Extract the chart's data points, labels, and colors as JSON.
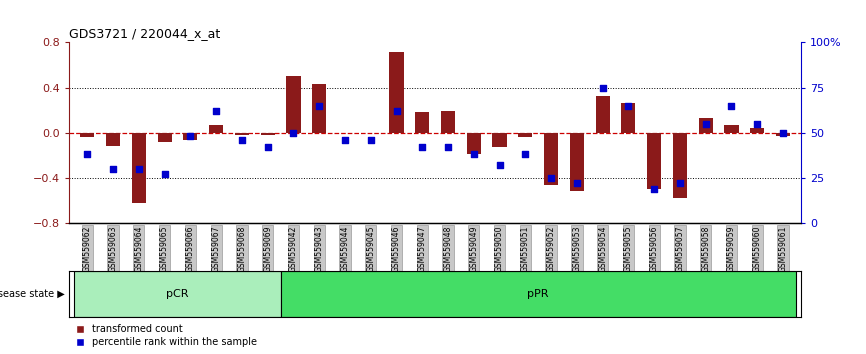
{
  "title": "GDS3721 / 220044_x_at",
  "samples": [
    "GSM559062",
    "GSM559063",
    "GSM559064",
    "GSM559065",
    "GSM559066",
    "GSM559067",
    "GSM559068",
    "GSM559069",
    "GSM559042",
    "GSM559043",
    "GSM559044",
    "GSM559045",
    "GSM559046",
    "GSM559047",
    "GSM559048",
    "GSM559049",
    "GSM559050",
    "GSM559051",
    "GSM559052",
    "GSM559053",
    "GSM559054",
    "GSM559055",
    "GSM559056",
    "GSM559057",
    "GSM559058",
    "GSM559059",
    "GSM559060",
    "GSM559061"
  ],
  "red_values": [
    -0.04,
    -0.12,
    -0.62,
    -0.08,
    -0.06,
    0.07,
    -0.02,
    -0.02,
    0.5,
    0.43,
    0.0,
    0.0,
    0.72,
    0.18,
    0.19,
    -0.19,
    -0.13,
    -0.04,
    -0.46,
    -0.52,
    0.33,
    0.26,
    -0.5,
    -0.58,
    0.13,
    0.07,
    0.04,
    -0.03
  ],
  "blue_percentiles": [
    38,
    30,
    30,
    27,
    48,
    62,
    46,
    42,
    50,
    65,
    46,
    46,
    62,
    42,
    42,
    38,
    32,
    38,
    25,
    22,
    75,
    65,
    19,
    22,
    55,
    65,
    55,
    50
  ],
  "pCR_count": 8,
  "pPR_count": 20,
  "ylim": [
    -0.8,
    0.8
  ],
  "yticks_red": [
    -0.8,
    -0.4,
    0.0,
    0.4,
    0.8
  ],
  "yticks_blue": [
    0,
    25,
    50,
    75,
    100
  ],
  "bar_color": "#8B1A1A",
  "dot_color": "#0000CC",
  "zero_line_color": "#CC0000",
  "grid_color": "#000000",
  "pCR_color": "#AAEEBB",
  "pPR_color": "#44DD66",
  "bg_tick_color": "#C8C8C8",
  "legend_red_label": "transformed count",
  "legend_blue_label": "percentile rank within the sample",
  "disease_state_label": "disease state"
}
